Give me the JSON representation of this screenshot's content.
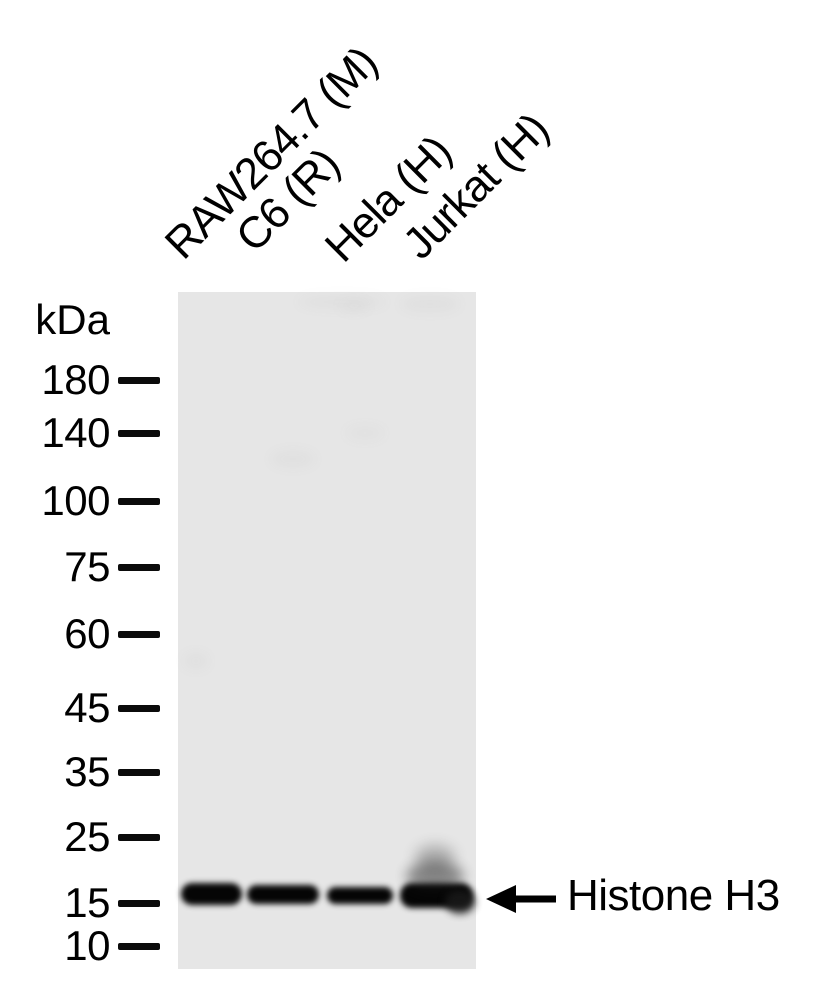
{
  "figure": {
    "type": "western-blot",
    "colors": {
      "background": "#ffffff",
      "membrane": "#e6e6e6",
      "band": "#050505",
      "text": "#000000"
    },
    "ladder": {
      "unit": "kDa",
      "markers": [
        "180",
        "140",
        "100",
        "75",
        "60",
        "45",
        "35",
        "25",
        "15",
        "10"
      ]
    },
    "lanes": [
      {
        "label": "RAW264.7 (M)",
        "has_band": true
      },
      {
        "label": "C6 (R)",
        "has_band": true
      },
      {
        "label": "Hela (H)",
        "has_band": true
      },
      {
        "label": "Jurkat (H)",
        "has_band": true
      }
    ],
    "annotation": {
      "text": "Histone H3",
      "arrow_icon": "left-arrow-icon",
      "points_to": "band row between 15 and 25 kDa markers"
    }
  }
}
